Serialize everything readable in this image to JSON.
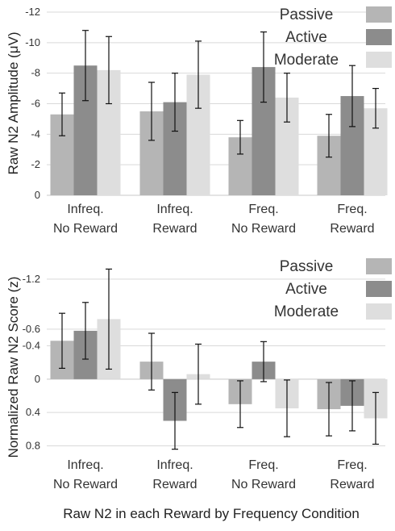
{
  "colors": {
    "passive": "#b5b5b5",
    "active": "#8c8c8c",
    "moderate": "#dedede"
  },
  "chart_data": [
    {
      "type": "bar",
      "ylabel": "Raw N2 Amplitude (μV)",
      "ylim": [
        0,
        -12
      ],
      "yticks": [
        0,
        -2,
        -4,
        -6,
        -8,
        -10,
        -12
      ],
      "ytick_labels": [
        "0",
        "-2",
        "-4",
        "-6",
        "-8",
        "-10",
        "-12"
      ],
      "grid": true,
      "legend": "top-right",
      "categories": [
        [
          "Infreq.",
          "No Reward"
        ],
        [
          "Infreq.",
          "Reward"
        ],
        [
          "Freq.",
          "No Reward"
        ],
        [
          "Freq.",
          "Reward"
        ]
      ],
      "series": [
        {
          "name": "Passive",
          "color": "#b5b5b5",
          "values": [
            -5.3,
            -5.5,
            -3.8,
            -3.9
          ],
          "errors": [
            1.4,
            1.9,
            1.1,
            1.4
          ]
        },
        {
          "name": "Active",
          "color": "#8c8c8c",
          "values": [
            -8.5,
            -6.1,
            -8.4,
            -6.5
          ],
          "errors": [
            2.3,
            1.9,
            2.3,
            2.0
          ]
        },
        {
          "name": "Moderate",
          "color": "#dedede",
          "values": [
            -8.2,
            -7.9,
            -6.4,
            -5.7
          ],
          "errors": [
            2.2,
            2.2,
            1.6,
            1.3
          ]
        }
      ]
    },
    {
      "type": "bar",
      "ylabel": "Normalized Raw N2 Score (z)",
      "ylim": [
        0.95,
        -1.45
      ],
      "yticks": [
        0.8,
        0.4,
        0,
        -0.4,
        -0.6,
        -1.2
      ],
      "ytick_labels": [
        "0.8",
        "0.4",
        "0",
        "-0.4",
        "-0.6",
        "-1.2"
      ],
      "grid": true,
      "legend": "top-right",
      "categories": [
        [
          "Infreq.",
          "No Reward"
        ],
        [
          "Infreq.",
          "Reward"
        ],
        [
          "Freq.",
          "No Reward"
        ],
        [
          "Freq.",
          "Reward"
        ]
      ],
      "series": [
        {
          "name": "Passive",
          "color": "#b5b5b5",
          "values": [
            -0.46,
            -0.21,
            0.3,
            0.36
          ],
          "errors": [
            0.33,
            0.34,
            0.28,
            0.32
          ]
        },
        {
          "name": "Active",
          "color": "#8c8c8c",
          "values": [
            -0.58,
            0.5,
            -0.21,
            0.32
          ],
          "errors": [
            0.34,
            0.34,
            0.24,
            0.3
          ]
        },
        {
          "name": "Moderate",
          "color": "#dedede",
          "values": [
            -0.72,
            -0.06,
            0.35,
            0.47
          ],
          "errors": [
            0.6,
            0.36,
            0.34,
            0.31
          ]
        }
      ]
    }
  ],
  "xlabel": "Raw N2 in each Reward by Frequency Condition"
}
